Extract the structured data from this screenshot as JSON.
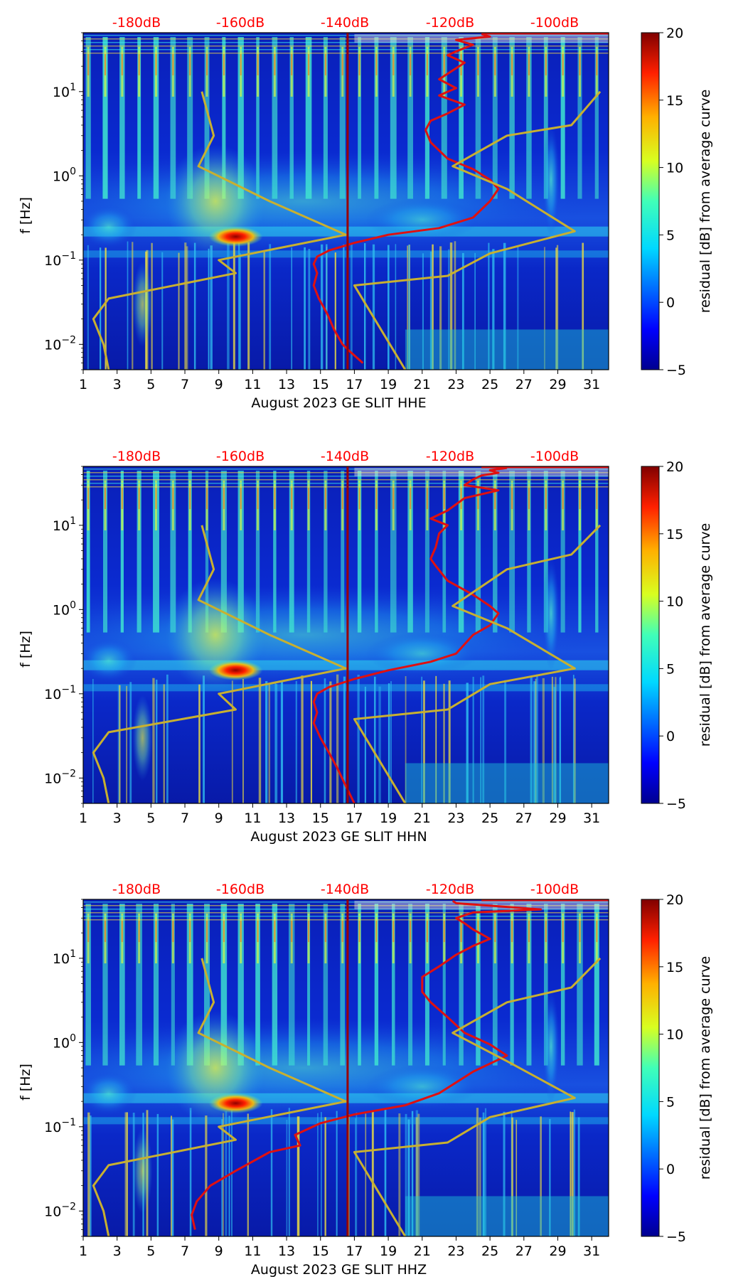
{
  "figure": {
    "panels_count": 3,
    "colorbar_label": "residual [dB] from average curve",
    "colorbar_ticks": [
      "20",
      "15",
      "10",
      "5",
      "0",
      "−5"
    ],
    "ylabel": "f [Hz]",
    "y_ticks": [
      "10−2",
      "10−1",
      "100",
      "101"
    ],
    "x_ticks": [
      "1",
      "3",
      "5",
      "7",
      "9",
      "11",
      "13",
      "15",
      "17",
      "19",
      "21",
      "23",
      "25",
      "27",
      "29",
      "31"
    ],
    "db_labels": [
      "-180dB",
      "-160dB",
      "-140dB",
      "-120dB",
      "-100dB"
    ],
    "colors": {
      "mean_psd": "#e01010",
      "reference": "#c8b030",
      "vline": "#990000",
      "db_label": "#ff0000"
    }
  },
  "chart_data": [
    {
      "type": "heatmap",
      "component": "HHE",
      "xlabel": "August 2023 GE SLIT  HHE",
      "ylabel": "f [Hz]",
      "x_range_days": [
        1,
        32
      ],
      "y_range_hz": [
        0.005,
        50
      ],
      "y_scale": "log",
      "color_range_db": [
        -5,
        20
      ],
      "colorbar_label": "residual [dB] from average curve",
      "top_axis_db": [
        -180,
        -160,
        -140,
        -120,
        -100
      ],
      "vline_day": 16.6,
      "series": [
        {
          "name": "mean PSD (red)",
          "points": [
            [
              24.5,
              48
            ],
            [
              25,
              45
            ],
            [
              23,
              41
            ],
            [
              24,
              36
            ],
            [
              23,
              30
            ],
            [
              22.5,
              27
            ],
            [
              23.5,
              22
            ],
            [
              22,
              14
            ],
            [
              23,
              11
            ],
            [
              22,
              9
            ],
            [
              23.5,
              7
            ],
            [
              22.5,
              5.5
            ],
            [
              21.5,
              4.5
            ],
            [
              21.2,
              3.5
            ],
            [
              21.5,
              2.5
            ],
            [
              22.5,
              1.6
            ],
            [
              24,
              1.2
            ],
            [
              25,
              0.9
            ],
            [
              25.5,
              0.7
            ],
            [
              25,
              0.5
            ],
            [
              24,
              0.32
            ],
            [
              22,
              0.24
            ],
            [
              19,
              0.2
            ],
            [
              17,
              0.16
            ],
            [
              15.5,
              0.13
            ],
            [
              14.8,
              0.11
            ],
            [
              14.6,
              0.09
            ],
            [
              14.8,
              0.07
            ],
            [
              14.6,
              0.05
            ],
            [
              14.9,
              0.035
            ],
            [
              15.4,
              0.023
            ],
            [
              15.8,
              0.015
            ],
            [
              16.3,
              0.01
            ],
            [
              16.8,
              0.008
            ],
            [
              17.5,
              0.006
            ]
          ]
        },
        {
          "name": "reference (yellow)",
          "points": [
            [
              31.5,
              10
            ],
            [
              29.8,
              4
            ],
            [
              26,
              3
            ],
            [
              22.8,
              1.3
            ],
            [
              26,
              0.7
            ],
            [
              30,
              0.22
            ],
            [
              25,
              0.12
            ],
            [
              22.5,
              0.065
            ],
            [
              17,
              0.05
            ],
            [
              20,
              0.005
            ]
          ]
        },
        {
          "name": "reference (yellow, left)",
          "points": [
            [
              2.5,
              0.005
            ],
            [
              2.2,
              0.01
            ],
            [
              1.6,
              0.02
            ],
            [
              2.5,
              0.035
            ],
            [
              10,
              0.07
            ],
            [
              9,
              0.1
            ],
            [
              16.5,
              0.2
            ],
            [
              12,
              0.5
            ],
            [
              7.8,
              1.3
            ],
            [
              8.7,
              3
            ],
            [
              8,
              10
            ]
          ]
        }
      ]
    },
    {
      "type": "heatmap",
      "component": "HHN",
      "xlabel": "August 2023 GE SLIT  HHN",
      "ylabel": "f [Hz]",
      "x_range_days": [
        1,
        32
      ],
      "y_range_hz": [
        0.005,
        50
      ],
      "y_scale": "log",
      "color_range_db": [
        -5,
        20
      ],
      "colorbar_label": "residual [dB] from average curve",
      "top_axis_db": [
        -180,
        -160,
        -140,
        -120,
        -100
      ],
      "vline_day": 16.6,
      "series": [
        {
          "name": "mean PSD (red)",
          "points": [
            [
              26,
              48
            ],
            [
              25,
              45
            ],
            [
              25.5,
              42
            ],
            [
              24.5,
              39
            ],
            [
              24,
              35
            ],
            [
              23.5,
              30
            ],
            [
              25.5,
              26
            ],
            [
              23.5,
              21
            ],
            [
              22.5,
              15
            ],
            [
              21.5,
              12
            ],
            [
              22.5,
              10
            ],
            [
              22,
              8
            ],
            [
              21.8,
              5.5
            ],
            [
              21.5,
              4
            ],
            [
              21.8,
              3.3
            ],
            [
              22.5,
              2.2
            ],
            [
              24,
              1.5
            ],
            [
              25,
              1.1
            ],
            [
              25.5,
              0.9
            ],
            [
              25,
              0.65
            ],
            [
              24,
              0.5
            ],
            [
              23,
              0.3
            ],
            [
              21.5,
              0.24
            ],
            [
              19,
              0.19
            ],
            [
              17,
              0.15
            ],
            [
              15.5,
              0.12
            ],
            [
              14.8,
              0.1
            ],
            [
              14.6,
              0.08
            ],
            [
              14.8,
              0.06
            ],
            [
              14.6,
              0.045
            ],
            [
              15,
              0.03
            ],
            [
              15.5,
              0.02
            ],
            [
              16,
              0.013
            ],
            [
              16.5,
              0.008
            ],
            [
              17,
              0.005
            ]
          ]
        },
        {
          "name": "reference (yellow)",
          "points": [
            [
              31.5,
              10
            ],
            [
              29.8,
              4.5
            ],
            [
              26,
              3
            ],
            [
              22.8,
              1.1
            ],
            [
              26,
              0.6
            ],
            [
              30,
              0.2
            ],
            [
              25,
              0.13
            ],
            [
              22.5,
              0.065
            ],
            [
              17,
              0.05
            ],
            [
              20,
              0.005
            ]
          ]
        },
        {
          "name": "reference (yellow, left)",
          "points": [
            [
              2.5,
              0.005
            ],
            [
              2.2,
              0.01
            ],
            [
              1.6,
              0.02
            ],
            [
              2.5,
              0.035
            ],
            [
              10,
              0.065
            ],
            [
              9,
              0.1
            ],
            [
              16.5,
              0.2
            ],
            [
              12,
              0.5
            ],
            [
              7.8,
              1.3
            ],
            [
              8.7,
              3
            ],
            [
              8,
              10
            ]
          ]
        }
      ]
    },
    {
      "type": "heatmap",
      "component": "HHZ",
      "xlabel": "August 2023 GE SLIT  HHZ",
      "ylabel": "f [Hz]",
      "x_range_days": [
        1,
        32
      ],
      "y_range_hz": [
        0.005,
        50
      ],
      "y_scale": "log",
      "color_range_db": [
        -5,
        20
      ],
      "colorbar_label": "residual [dB] from average curve",
      "top_axis_db": [
        -180,
        -160,
        -140,
        -120,
        -100
      ],
      "vline_day": 16.6,
      "series": [
        {
          "name": "mean PSD (red)",
          "points": [
            [
              22.8,
              48
            ],
            [
              23,
              45
            ],
            [
              28,
              38
            ],
            [
              24,
              35
            ],
            [
              23,
              30
            ],
            [
              23.5,
              26
            ],
            [
              24,
              22
            ],
            [
              25,
              17
            ],
            [
              24,
              14
            ],
            [
              23,
              11
            ],
            [
              22,
              8
            ],
            [
              21,
              6
            ],
            [
              21,
              4
            ],
            [
              21.5,
              3
            ],
            [
              22.5,
              2
            ],
            [
              23.5,
              1.3
            ],
            [
              25,
              0.95
            ],
            [
              26,
              0.7
            ],
            [
              24,
              0.45
            ],
            [
              22,
              0.25
            ],
            [
              20,
              0.18
            ],
            [
              17,
              0.14
            ],
            [
              15,
              0.11
            ],
            [
              13.5,
              0.08
            ],
            [
              13.8,
              0.06
            ],
            [
              12,
              0.05
            ],
            [
              10,
              0.03
            ],
            [
              8.5,
              0.02
            ],
            [
              7.7,
              0.013
            ],
            [
              7.4,
              0.009
            ],
            [
              7.6,
              0.006
            ]
          ]
        },
        {
          "name": "reference (yellow)",
          "points": [
            [
              31.5,
              10
            ],
            [
              29.8,
              4.5
            ],
            [
              26,
              3
            ],
            [
              22.8,
              1.3
            ],
            [
              26,
              0.6
            ],
            [
              30,
              0.22
            ],
            [
              25,
              0.13
            ],
            [
              22.5,
              0.065
            ],
            [
              17,
              0.05
            ],
            [
              20,
              0.005
            ]
          ]
        },
        {
          "name": "reference (yellow, left)",
          "points": [
            [
              2.5,
              0.005
            ],
            [
              2.2,
              0.01
            ],
            [
              1.6,
              0.02
            ],
            [
              2.5,
              0.035
            ],
            [
              10,
              0.07
            ],
            [
              9,
              0.1
            ],
            [
              16.5,
              0.2
            ],
            [
              12,
              0.5
            ],
            [
              7.8,
              1.3
            ],
            [
              8.7,
              3
            ],
            [
              8,
              10
            ]
          ]
        }
      ]
    }
  ]
}
